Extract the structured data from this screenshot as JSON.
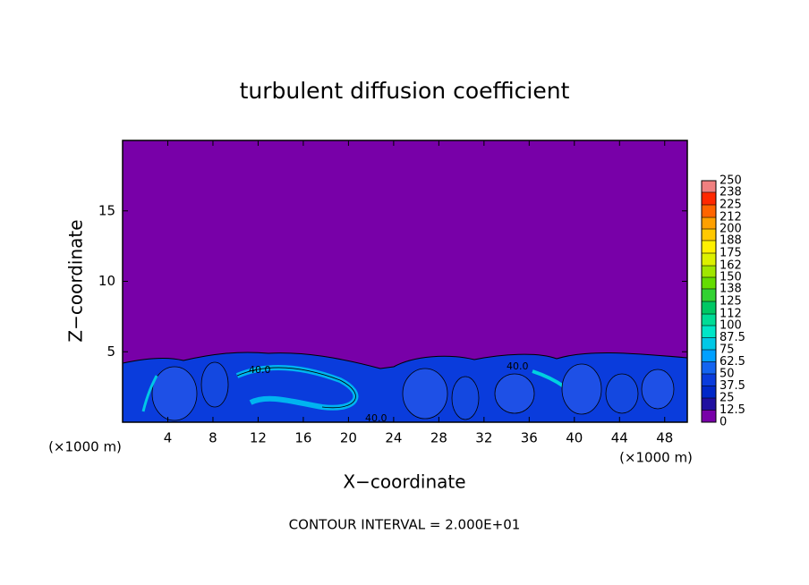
{
  "chart_data": {
    "type": "contour",
    "title": "turbulent diffusion coefficient",
    "x_label": "X−coordinate",
    "y_label": "Z−coordinate",
    "x_unit": "(×1000 m)",
    "footer": "CONTOUR INTERVAL = 2.000E+01",
    "contour_label": "40.0",
    "background_color": "#7800a8",
    "xlim": [
      0,
      50
    ],
    "xticks": [
      4,
      8,
      12,
      16,
      20,
      24,
      28,
      32,
      36,
      40,
      44,
      48
    ],
    "ylim": [
      0,
      20
    ],
    "yticks": [
      5,
      10,
      15
    ],
    "colorbar": {
      "ticks": [
        0,
        12.5,
        25,
        37.5,
        50,
        62.5,
        75,
        87.5,
        100,
        112,
        125,
        138,
        150,
        162,
        175,
        188,
        200,
        212,
        225,
        238,
        250
      ],
      "colors": [
        "#7800a8",
        "#2010a0",
        "#0028c8",
        "#0a3cdc",
        "#1464f0",
        "#00a0ff",
        "#00c8e6",
        "#00e6c8",
        "#00dc96",
        "#00c864",
        "#32d232",
        "#64dc00",
        "#a0e600",
        "#dcf000",
        "#fff000",
        "#ffc800",
        "#ffa000",
        "#ff6400",
        "#ff2800",
        "#f08080"
      ]
    }
  }
}
